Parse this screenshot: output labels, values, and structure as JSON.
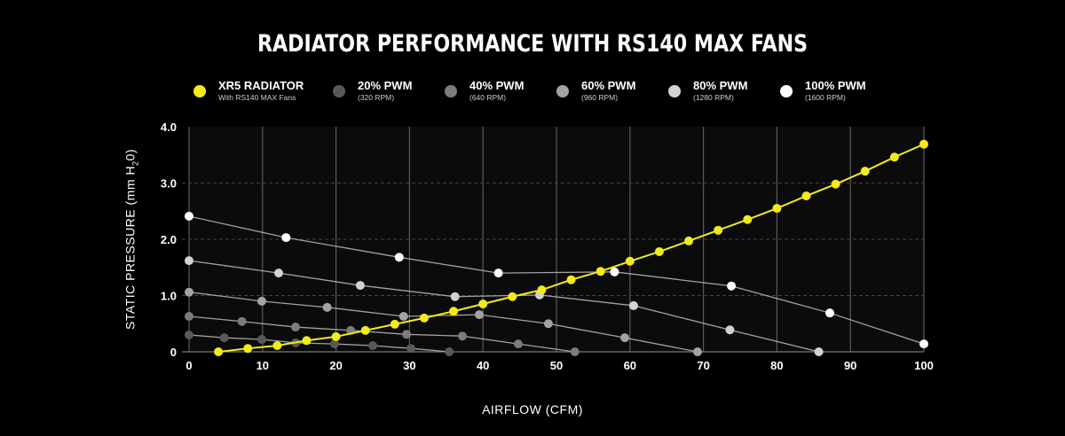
{
  "chart_data": {
    "type": "line",
    "title": "RADIATOR PERFORMANCE WITH RS140 MAX FANS",
    "xlabel": "AIRFLOW (CFM)",
    "ylabel_main": "STATIC PRESSURE (mm H",
    "ylabel_sub": "2",
    "ylabel_end": "0)",
    "xlim": [
      0,
      100
    ],
    "ylim": [
      0,
      4
    ],
    "xticks": [
      "0",
      "10",
      "20",
      "30",
      "40",
      "50",
      "60",
      "70",
      "80",
      "90",
      "100"
    ],
    "yticks": [
      "0",
      "1.0",
      "2.0",
      "3.0",
      "4.0"
    ],
    "grid": {
      "vertical": "solid",
      "horizontal": "dashed"
    },
    "legend_position": "top",
    "series": [
      {
        "name": "XR5 RADIATOR",
        "sub": "With RS140 MAX Fans",
        "color": "#f2ea1c",
        "x": [
          4,
          8,
          12,
          16,
          20,
          24,
          28,
          32,
          36,
          40,
          44,
          48,
          52,
          56,
          60,
          64,
          68,
          72,
          76,
          80,
          84,
          88,
          92,
          96,
          100
        ],
        "y": [
          0,
          0.06,
          0.11,
          0.2,
          0.27,
          0.38,
          0.49,
          0.6,
          0.72,
          0.85,
          0.98,
          1.1,
          1.28,
          1.43,
          1.61,
          1.78,
          1.97,
          2.16,
          2.35,
          2.55,
          2.77,
          2.98,
          3.21,
          3.46,
          3.69
        ]
      },
      {
        "name": "20% PWM",
        "sub": "(320 RPM)",
        "color": "#595959",
        "x": [
          0,
          4.8,
          9.9,
          14.5,
          19.8,
          25,
          30.2,
          35.4
        ],
        "y": [
          0.3,
          0.25,
          0.22,
          0.16,
          0.14,
          0.11,
          0.06,
          0
        ]
      },
      {
        "name": "40% PWM",
        "sub": "(640 RPM)",
        "color": "#7c7c7c",
        "x": [
          0,
          7.2,
          14.5,
          22,
          29.6,
          37.2,
          44.8,
          52.5
        ],
        "y": [
          0.63,
          0.54,
          0.44,
          0.38,
          0.31,
          0.28,
          0.14,
          0
        ]
      },
      {
        "name": "60% PWM",
        "sub": "(960 RPM)",
        "color": "#a3a3a3",
        "x": [
          0,
          9.9,
          18.8,
          29.2,
          39.5,
          48.9,
          59.3,
          69.2
        ],
        "y": [
          1.06,
          0.9,
          0.79,
          0.63,
          0.66,
          0.5,
          0.25,
          0
        ]
      },
      {
        "name": "80% PWM",
        "sub": "(1280 RPM)",
        "color": "#d2d2d2",
        "x": [
          0,
          12.2,
          23.3,
          36.2,
          47.7,
          60.5,
          73.6,
          85.7
        ],
        "y": [
          1.62,
          1.4,
          1.18,
          0.98,
          1.01,
          0.82,
          0.39,
          0
        ]
      },
      {
        "name": "100% PWM",
        "sub": "(1600 RPM)",
        "color": "#ffffff",
        "x": [
          0,
          13.2,
          28.6,
          42.1,
          57.9,
          73.8,
          87.2,
          100
        ],
        "y": [
          2.41,
          2.03,
          1.68,
          1.4,
          1.42,
          1.17,
          0.69,
          0.14
        ]
      }
    ]
  }
}
